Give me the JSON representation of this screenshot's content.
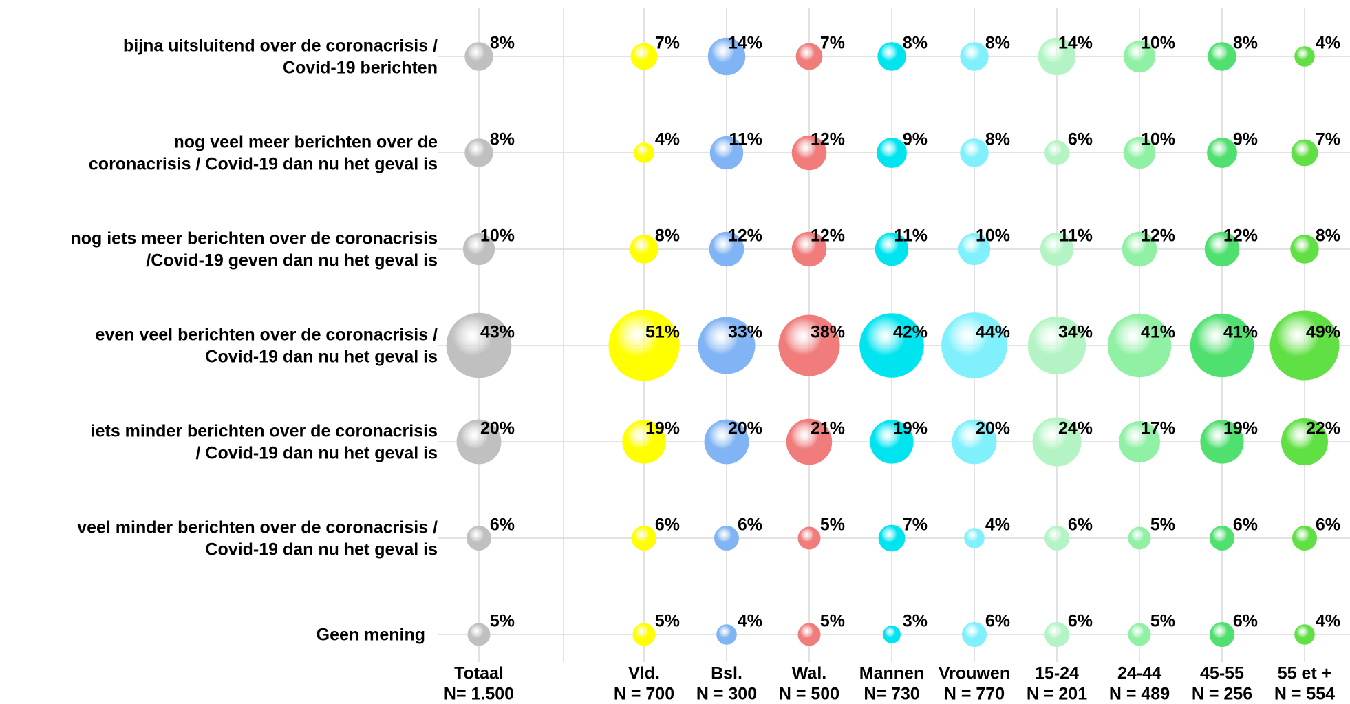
{
  "chart_data": {
    "type": "bubble",
    "rows": [
      [
        "bijna uitsluitend over de coronacrisis /",
        "Covid-19  berichten"
      ],
      [
        "nog veel meer berichten over de",
        "coronacrisis / Covid-19 dan nu het geval is"
      ],
      [
        "nog iets meer berichten over de coronacrisis",
        "/Covid-19 geven dan nu het geval is"
      ],
      [
        "even veel berichten over de coronacrisis /",
        "Covid-19 dan nu het geval is"
      ],
      [
        "iets minder berichten over de coronacrisis",
        "/ Covid-19 dan nu het geval is"
      ],
      [
        "veel minder berichten over de coronacrisis /",
        "Covid-19 dan nu het geval is"
      ],
      [
        "Geen mening"
      ]
    ],
    "series": [
      {
        "name": "Totaal",
        "n": "N= 1.500",
        "color": "#c0c0c0",
        "values": [
          8,
          8,
          10,
          43,
          20,
          6,
          5
        ],
        "value_labels": [
          "8%",
          "8%",
          "10%",
          "43%",
          "20%",
          "6%",
          "5%"
        ]
      },
      {
        "name": "Vld.",
        "n": "N = 700",
        "color": "#ffff00",
        "values": [
          7,
          4,
          8,
          51,
          19,
          6,
          5
        ],
        "value_labels": [
          "7%",
          "4%",
          "8%",
          "51%",
          "19%",
          "6%",
          "5%"
        ]
      },
      {
        "name": "Bsl.",
        "n": "N = 300",
        "color": "#80b4f4",
        "values": [
          14,
          11,
          12,
          33,
          20,
          6,
          4
        ],
        "value_labels": [
          "14%",
          "11%",
          "12%",
          "33%",
          "20%",
          "6%",
          "4%"
        ]
      },
      {
        "name": "Wal.",
        "n": "N = 500",
        "color": "#f07c7c",
        "values": [
          7,
          12,
          12,
          38,
          21,
          5,
          5
        ],
        "value_labels": [
          "7%",
          "12%",
          "12%",
          "38%",
          "21%",
          "5%",
          "5%"
        ]
      },
      {
        "name": "Mannen",
        "n": "N= 730",
        "color": "#00e4f0",
        "values": [
          8,
          9,
          11,
          42,
          19,
          7,
          3
        ],
        "value_labels": [
          "8%",
          "9%",
          "11%",
          "42%",
          "19%",
          "7%",
          "3%"
        ]
      },
      {
        "name": "Vrouwen",
        "n": "N = 770",
        "color": "#80f0fc",
        "values": [
          8,
          8,
          10,
          44,
          20,
          4,
          6
        ],
        "value_labels": [
          "8%",
          "8%",
          "10%",
          "44%",
          "20%",
          "4%",
          "6%"
        ]
      },
      {
        "name": "15-24",
        "n": "N = 201",
        "color": "#b4f4c4",
        "values": [
          14,
          6,
          11,
          34,
          24,
          6,
          6
        ],
        "value_labels": [
          "14%",
          "6%",
          "11%",
          "34%",
          "24%",
          "6%",
          "6%"
        ]
      },
      {
        "name": "24-44",
        "n": "N = 489",
        "color": "#90f0a4",
        "values": [
          10,
          10,
          12,
          41,
          17,
          5,
          5
        ],
        "value_labels": [
          "10%",
          "10%",
          "12%",
          "41%",
          "17%",
          "5%",
          "5%"
        ]
      },
      {
        "name": "45-55",
        "n": "N = 256",
        "color": "#50e070",
        "values": [
          8,
          9,
          12,
          41,
          19,
          6,
          6
        ],
        "value_labels": [
          "8%",
          "9%",
          "12%",
          "41%",
          "19%",
          "6%",
          "6%"
        ]
      },
      {
        "name": "55 et +",
        "n": "N = 554",
        "color": "#60e044",
        "values": [
          4,
          7,
          8,
          49,
          22,
          6,
          4
        ],
        "value_labels": [
          "4%",
          "7%",
          "8%",
          "49%",
          "22%",
          "6%",
          "4%"
        ]
      }
    ]
  }
}
